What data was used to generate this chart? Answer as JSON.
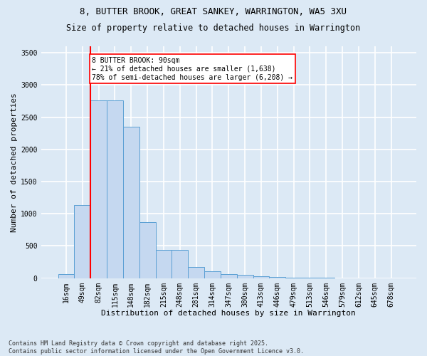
{
  "title_line1": "8, BUTTER BROOK, GREAT SANKEY, WARRINGTON, WA5 3XU",
  "title_line2": "Size of property relative to detached houses in Warrington",
  "xlabel": "Distribution of detached houses by size in Warrington",
  "ylabel": "Number of detached properties",
  "categories": [
    "16sqm",
    "49sqm",
    "82sqm",
    "115sqm",
    "148sqm",
    "182sqm",
    "215sqm",
    "248sqm",
    "281sqm",
    "314sqm",
    "347sqm",
    "380sqm",
    "413sqm",
    "446sqm",
    "479sqm",
    "513sqm",
    "546sqm",
    "579sqm",
    "612sqm",
    "645sqm",
    "678sqm"
  ],
  "values": [
    60,
    1130,
    2760,
    2760,
    2350,
    870,
    440,
    440,
    175,
    110,
    60,
    50,
    30,
    20,
    10,
    5,
    3,
    2,
    1,
    1,
    1
  ],
  "bar_color": "#c5d8f0",
  "bar_edge_color": "#5a9fd4",
  "annotation_text": "8 BUTTER BROOK: 90sqm\n← 21% of detached houses are smaller (1,638)\n78% of semi-detached houses are larger (6,208) →",
  "vline_x": 2.0,
  "vline_color": "red",
  "annotation_box_facecolor": "white",
  "annotation_box_edgecolor": "red",
  "ylim": [
    0,
    3600
  ],
  "yticks": [
    0,
    500,
    1000,
    1500,
    2000,
    2500,
    3000,
    3500
  ],
  "footer_line1": "Contains HM Land Registry data © Crown copyright and database right 2025.",
  "footer_line2": "Contains public sector information licensed under the Open Government Licence v3.0.",
  "background_color": "#dce9f5",
  "plot_bg_color": "#dce9f5",
  "grid_color": "white",
  "title_fontsize": 9,
  "subtitle_fontsize": 8.5,
  "tick_fontsize": 7,
  "ylabel_fontsize": 8,
  "xlabel_fontsize": 8
}
